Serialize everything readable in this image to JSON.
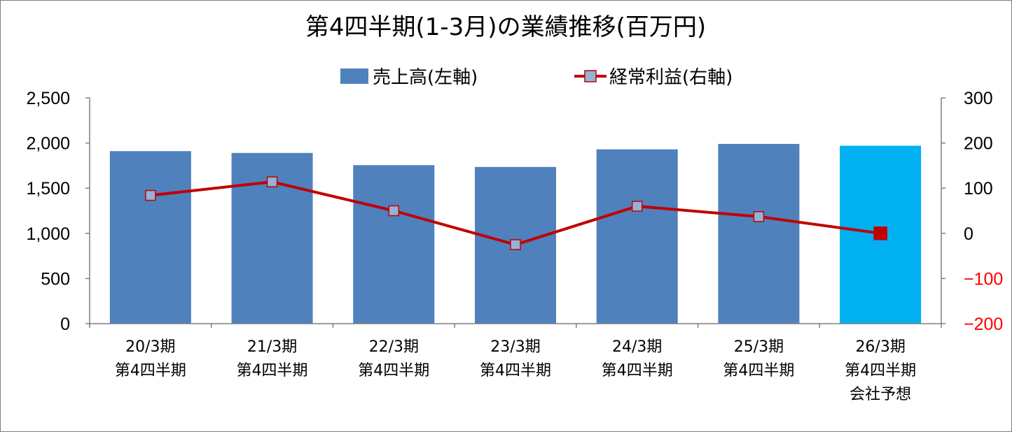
{
  "chart_data": {
    "type": "bar",
    "title": "第4四半期(1-3月)の業績推移(百万円)",
    "categories": [
      [
        "20/3期",
        "第4四半期"
      ],
      [
        "21/3期",
        "第4四半期"
      ],
      [
        "22/3期",
        "第4四半期"
      ],
      [
        "23/3期",
        "第4四半期"
      ],
      [
        "24/3期",
        "第4四半期"
      ],
      [
        "25/3期",
        "第4四半期"
      ],
      [
        "26/3期",
        "第4四半期",
        "会社予想"
      ]
    ],
    "series": [
      {
        "name": "売上高(左軸)",
        "type": "bar",
        "axis": "left",
        "values": [
          1910,
          1890,
          1755,
          1735,
          1930,
          1990,
          1970
        ],
        "colors": [
          "#4f81bd",
          "#4f81bd",
          "#4f81bd",
          "#4f81bd",
          "#4f81bd",
          "#4f81bd",
          "#00b0f0"
        ]
      },
      {
        "name": "経常利益(右軸)",
        "type": "line",
        "axis": "right",
        "values": [
          84,
          114,
          50,
          -25,
          60,
          37,
          0
        ],
        "line_color": "#c00000",
        "marker_color": "#95b3d7",
        "last_marker_color": "#c00000"
      }
    ],
    "left_axis": {
      "min": 0,
      "max": 2500,
      "step": 500,
      "tick_labels": [
        "0",
        "500",
        "1,000",
        "1,500",
        "2,000",
        "2,500"
      ]
    },
    "right_axis": {
      "min": -200,
      "max": 300,
      "step": 100,
      "tick_labels": [
        "−200",
        "−100",
        "0",
        "100",
        "200",
        "300"
      ],
      "negative_color": "#ff0000"
    },
    "legend_position": "top-center",
    "grid": false
  }
}
